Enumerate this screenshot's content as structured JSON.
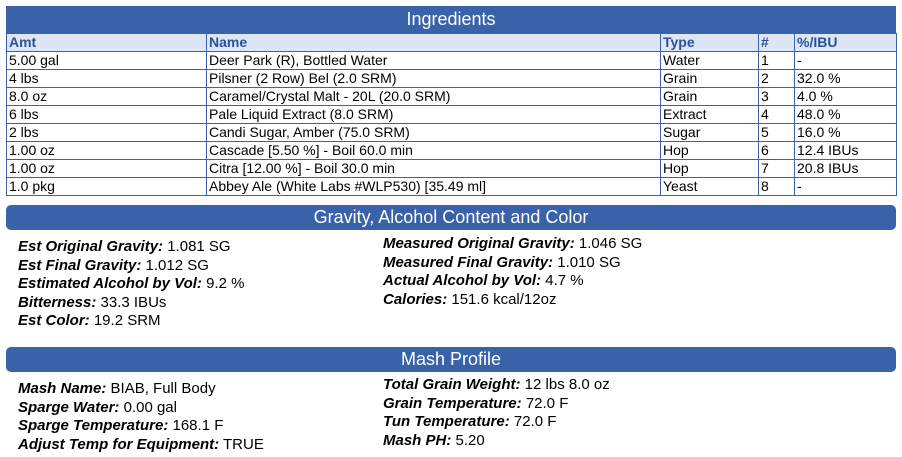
{
  "ingredients": {
    "title": "Ingredients",
    "columns": [
      "Amt",
      "Name",
      "Type",
      "#",
      "%/IBU"
    ],
    "rows": [
      [
        "5.00 gal",
        "Deer Park (R), Bottled Water",
        "Water",
        "1",
        "-"
      ],
      [
        "4 lbs",
        "Pilsner (2 Row) Bel (2.0 SRM)",
        "Grain",
        "2",
        "32.0 %"
      ],
      [
        "8.0 oz",
        "Caramel/Crystal Malt - 20L (20.0 SRM)",
        "Grain",
        "3",
        "4.0 %"
      ],
      [
        "6 lbs",
        "Pale Liquid Extract (8.0 SRM)",
        "Extract",
        "4",
        "48.0 %"
      ],
      [
        "2 lbs",
        "Candi Sugar, Amber (75.0 SRM)",
        "Sugar",
        "5",
        "16.0 %"
      ],
      [
        "1.00 oz",
        "Cascade [5.50 %] - Boil 60.0 min",
        "Hop",
        "6",
        "12.4 IBUs"
      ],
      [
        "1.00 oz",
        "Citra [12.00 %] - Boil 30.0 min",
        "Hop",
        "7",
        "20.8 IBUs"
      ],
      [
        "1.0 pkg",
        "Abbey Ale (White Labs #WLP530) [35.49 ml]",
        "Yeast",
        "8",
        "-"
      ]
    ]
  },
  "gravity": {
    "title": "Gravity, Alcohol Content and Color",
    "columns": [
      [
        {
          "label": "Est Original Gravity:",
          "value": "1.081 SG"
        },
        {
          "label": "Est Final Gravity:",
          "value": "1.012 SG"
        },
        {
          "label": "Estimated Alcohol by Vol:",
          "value": "9.2 %"
        },
        {
          "label": "Bitterness:",
          "value": "33.3 IBUs"
        },
        {
          "label": "Est Color:",
          "value": "19.2 SRM"
        }
      ],
      [
        {
          "label": "Measured Original Gravity:",
          "value": "1.046 SG"
        },
        {
          "label": "Measured Final Gravity:",
          "value": "1.010 SG"
        },
        {
          "label": "Actual Alcohol by Vol:",
          "value": "4.7 %"
        },
        {
          "label": "Calories:",
          "value": "151.6 kcal/12oz"
        }
      ]
    ]
  },
  "mash": {
    "title": "Mash Profile",
    "columns": [
      [
        {
          "label": "Mash Name:",
          "value": "BIAB, Full Body"
        },
        {
          "label": "Sparge Water:",
          "value": "0.00 gal"
        },
        {
          "label": "Sparge Temperature:",
          "value": "168.1 F"
        },
        {
          "label": "Adjust Temp for Equipment:",
          "value": "TRUE"
        }
      ],
      [
        {
          "label": "Total Grain Weight:",
          "value": "12 lbs 8.0 oz"
        },
        {
          "label": "Grain Temperature:",
          "value": "72.0 F"
        },
        {
          "label": "Tun Temperature:",
          "value": "72.0 F"
        },
        {
          "label": "Mash PH:",
          "value": "5.20"
        }
      ]
    ]
  }
}
